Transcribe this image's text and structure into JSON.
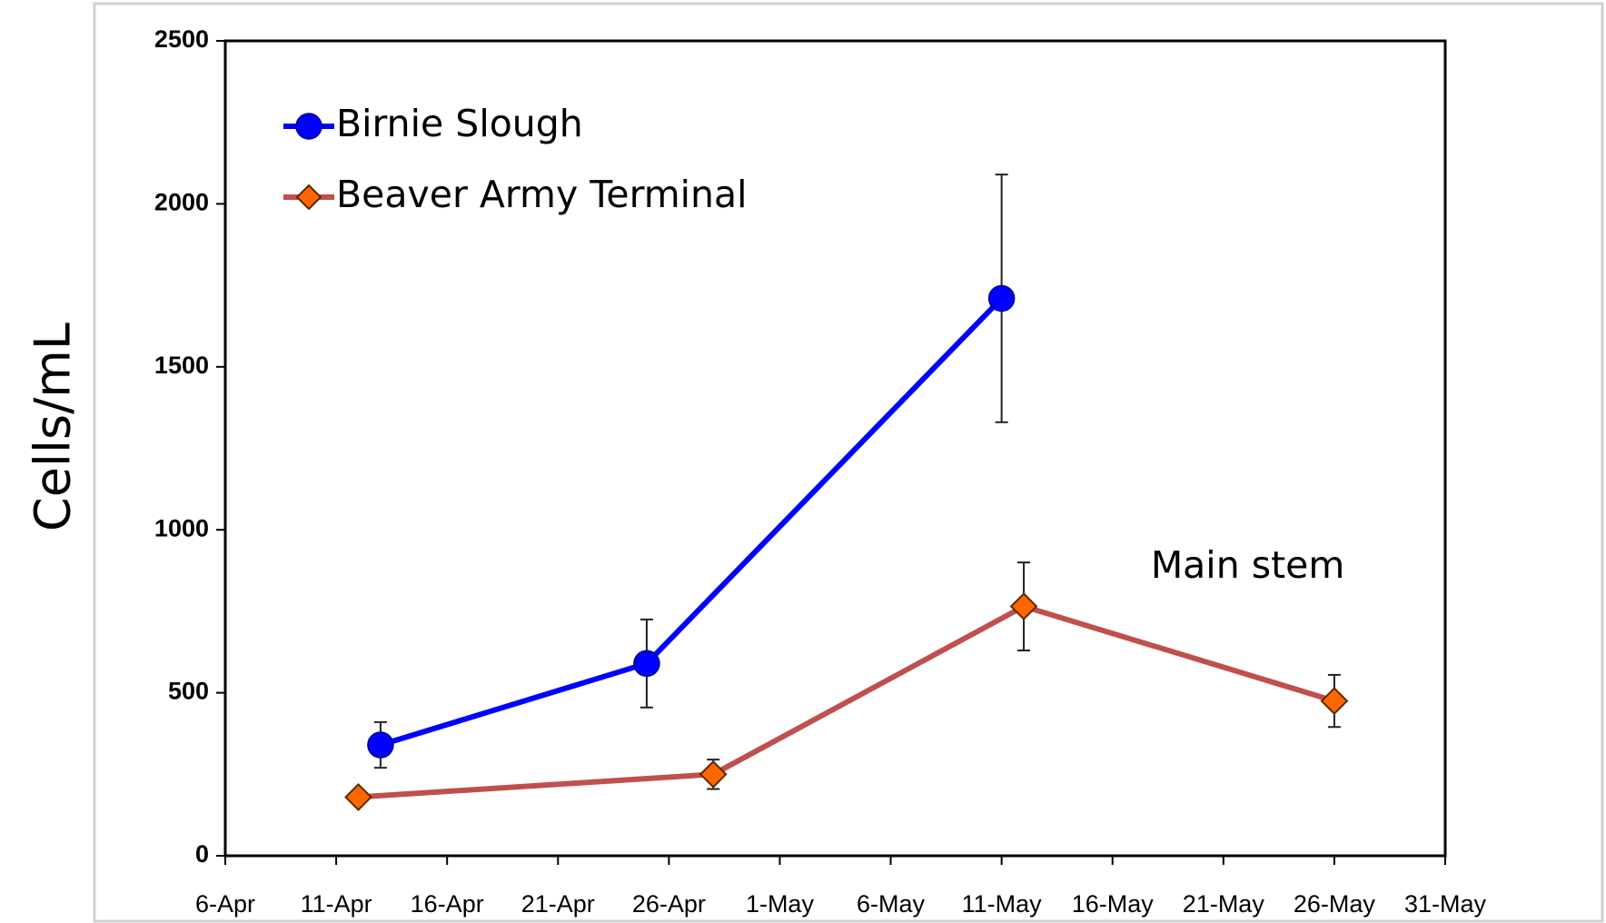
{
  "chart_data": {
    "type": "line",
    "y_label": "Cells/mL",
    "xlim": [
      0,
      55
    ],
    "xticks": [
      {
        "value": 0,
        "label": "6-Apr"
      },
      {
        "value": 5,
        "label": "11-Apr"
      },
      {
        "value": 10,
        "label": "16-Apr"
      },
      {
        "value": 15,
        "label": "21-Apr"
      },
      {
        "value": 20,
        "label": "26-Apr"
      },
      {
        "value": 25,
        "label": "1-May"
      },
      {
        "value": 30,
        "label": "6-May"
      },
      {
        "value": 35,
        "label": "11-May"
      },
      {
        "value": 40,
        "label": "16-May"
      },
      {
        "value": 45,
        "label": "21-May"
      },
      {
        "value": 50,
        "label": "26-May"
      },
      {
        "value": 55,
        "label": "31-May"
      }
    ],
    "ylim": [
      0,
      2500
    ],
    "yticks": [
      0,
      500,
      1000,
      1500,
      2000,
      2500
    ],
    "grid": false,
    "legend": "upper left",
    "series": [
      {
        "name": "Birnie Slough",
        "color": "#0000ff",
        "marker": "circle",
        "x": [
          7,
          19,
          35
        ],
        "values": [
          340,
          590,
          1710
        ],
        "errors": [
          70,
          135,
          380
        ]
      },
      {
        "name": "Beaver Army Terminal",
        "color": "#c0504d",
        "marker_color": "#ff6600",
        "marker": "diamond",
        "x": [
          6,
          22,
          36,
          50
        ],
        "values": [
          180,
          250,
          765,
          475
        ],
        "errors": [
          15,
          45,
          135,
          80
        ]
      }
    ],
    "annotations": [
      {
        "text": "Main stem",
        "x": 45,
        "y": 800
      }
    ]
  }
}
